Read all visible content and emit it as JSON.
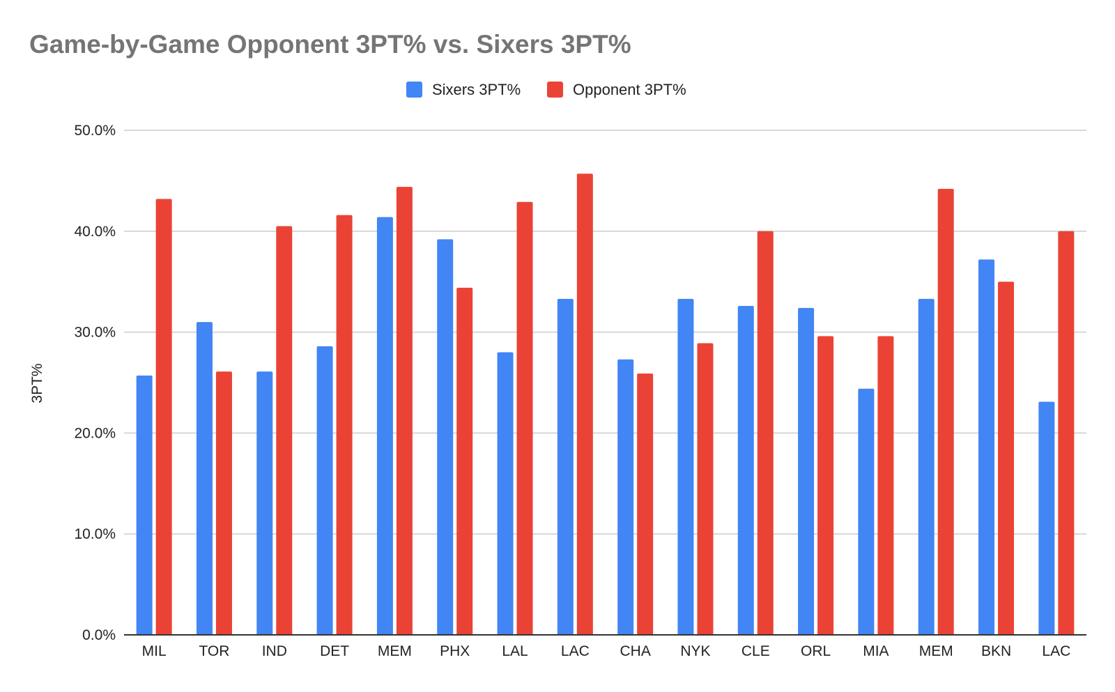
{
  "chart_data": {
    "type": "bar",
    "title": "Game-by-Game Opponent 3PT% vs. Sixers 3PT%",
    "xlabel": "",
    "ylabel": "3PT%",
    "categories": [
      "MIL",
      "TOR",
      "IND",
      "DET",
      "MEM",
      "PHX",
      "LAL",
      "LAC",
      "CHA",
      "NYK",
      "CLE",
      "ORL",
      "MIA",
      "MEM",
      "BKN",
      "LAC"
    ],
    "series": [
      {
        "name": "Sixers 3PT%",
        "color": "#4285F4",
        "values": [
          25.7,
          31.0,
          26.1,
          28.6,
          41.4,
          39.2,
          28.0,
          33.3,
          27.3,
          33.3,
          32.6,
          32.4,
          24.4,
          33.3,
          37.2,
          23.1
        ]
      },
      {
        "name": "Opponent 3PT%",
        "color": "#EA4335",
        "values": [
          43.2,
          26.1,
          40.5,
          41.6,
          44.4,
          34.4,
          42.9,
          45.7,
          25.9,
          28.9,
          40.0,
          29.6,
          29.6,
          44.2,
          35.0,
          40.0
        ]
      }
    ],
    "yticks": [
      "0.0%",
      "10.0%",
      "20.0%",
      "30.0%",
      "40.0%",
      "50.0%"
    ],
    "ylim": [
      0,
      50
    ],
    "grid": true,
    "legend_position": "top-center"
  }
}
